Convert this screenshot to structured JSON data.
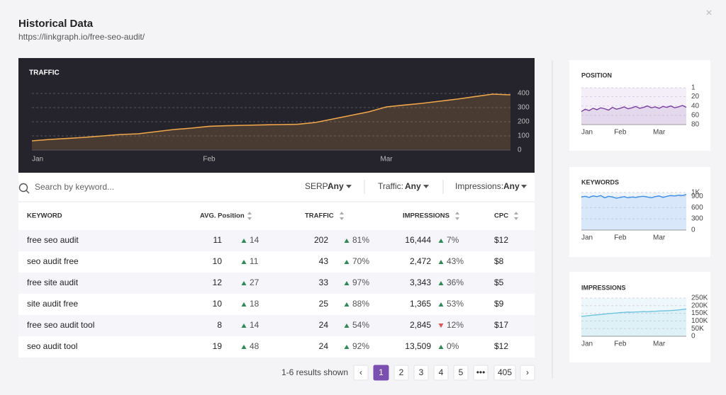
{
  "header": {
    "title": "Historical Data",
    "url": "https://linkgraph.io/free-seo-audit/",
    "close": "×"
  },
  "traffic_chart": {
    "type": "area",
    "title": "TRAFFIC",
    "color": "#f0a64a",
    "categories": [
      "Jan",
      null,
      null,
      null,
      null,
      null,
      null,
      null,
      null,
      null,
      "Feb",
      null,
      null,
      null,
      null,
      null,
      null,
      null,
      null,
      null,
      "Mar",
      null,
      null,
      null,
      null,
      null,
      null,
      null
    ],
    "values": [
      65,
      75,
      82,
      90,
      100,
      110,
      115,
      130,
      145,
      155,
      168,
      172,
      175,
      178,
      180,
      182,
      195,
      220,
      245,
      270,
      305,
      318,
      330,
      345,
      360,
      378,
      395,
      390
    ],
    "ylim": [
      0,
      400
    ],
    "yticks": [
      0,
      100,
      200,
      300,
      400
    ],
    "grid": true
  },
  "side_charts": [
    {
      "type": "area",
      "title": "POSITION",
      "color": "#7a3fa0",
      "inverted": true,
      "categories": [
        "Jan",
        null,
        null,
        null,
        null,
        null,
        null,
        null,
        null,
        null,
        "Feb",
        null,
        null,
        null,
        null,
        null,
        null,
        null,
        null,
        null,
        "Mar",
        null,
        null,
        null,
        null,
        null,
        null,
        null
      ],
      "values": [
        52,
        47,
        50,
        45,
        48,
        44,
        46,
        49,
        43,
        47,
        45,
        42,
        46,
        44,
        41,
        45,
        43,
        40,
        44,
        42,
        45,
        41,
        43,
        40,
        44,
        42,
        39,
        43
      ],
      "ylim": [
        1,
        80
      ],
      "yticks": [
        1,
        20,
        40,
        60,
        80
      ],
      "grid": true
    },
    {
      "type": "area",
      "title": "KEYWORDS",
      "color": "#3a8ee6",
      "categories": [
        "Jan",
        null,
        null,
        null,
        null,
        null,
        null,
        null,
        null,
        null,
        "Feb",
        null,
        null,
        null,
        null,
        null,
        null,
        null,
        null,
        null,
        "Mar",
        null,
        null,
        null,
        null,
        null,
        null,
        null
      ],
      "values": [
        880,
        900,
        870,
        910,
        890,
        920,
        860,
        900,
        880,
        850,
        870,
        890,
        860,
        880,
        870,
        890,
        900,
        880,
        860,
        890,
        910,
        870,
        900,
        920,
        910,
        930,
        920,
        950
      ],
      "ylim": [
        0,
        1000
      ],
      "yticks": [
        0,
        300,
        600,
        900,
        {
          "value": 1000,
          "label": "1K"
        }
      ],
      "grid": true
    },
    {
      "type": "area",
      "title": "IMPRESSIONS",
      "color": "#6cc4e0",
      "categories": [
        "Jan",
        null,
        null,
        null,
        null,
        null,
        null,
        null,
        null,
        null,
        "Feb",
        null,
        null,
        null,
        null,
        null,
        null,
        null,
        null,
        null,
        "Mar",
        null,
        null,
        null,
        null,
        null,
        null,
        null
      ],
      "values": [
        130000,
        132000,
        135000,
        138000,
        140000,
        142000,
        145000,
        148000,
        150000,
        152000,
        155000,
        156000,
        158000,
        157000,
        159000,
        160000,
        161000,
        160000,
        162000,
        163000,
        165000,
        166000,
        167000,
        168000,
        170000,
        172000,
        175000,
        178000
      ],
      "ylim": [
        0,
        250000
      ],
      "yticks": [
        0,
        {
          "value": 50000,
          "label": "50K"
        },
        {
          "value": 100000,
          "label": "100K"
        },
        {
          "value": 150000,
          "label": "150K"
        },
        {
          "value": 200000,
          "label": "200K"
        },
        {
          "value": 250000,
          "label": "250K"
        }
      ],
      "grid": true
    }
  ],
  "filters": {
    "search_placeholder": "Search by keyword...",
    "items": [
      {
        "label": "SERP:",
        "value": "Any"
      },
      {
        "label": "Traffic:",
        "value": "Any"
      },
      {
        "label": "Impressions:",
        "value": "Any"
      }
    ]
  },
  "table": {
    "headers": [
      "KEYWORD",
      "AVG. Position",
      "TRAFFIC",
      "IMPRESSIONS",
      "CPC"
    ],
    "rows": [
      {
        "keyword": "free seo audit",
        "position": "11",
        "position_change": {
          "label": "14",
          "trend": "up"
        },
        "traffic": "202",
        "traffic_change": {
          "label": "81%",
          "trend": "up"
        },
        "impressions": "16,444",
        "impressions_change": {
          "label": "7%",
          "trend": "up"
        },
        "cpc": "$12"
      },
      {
        "keyword": "seo audit free",
        "position": "10",
        "position_change": {
          "label": "11",
          "trend": "up"
        },
        "traffic": "43",
        "traffic_change": {
          "label": "70%",
          "trend": "up"
        },
        "impressions": "2,472",
        "impressions_change": {
          "label": "43%",
          "trend": "up"
        },
        "cpc": "$8"
      },
      {
        "keyword": "free site audit",
        "position": "12",
        "position_change": {
          "label": "27",
          "trend": "up"
        },
        "traffic": "33",
        "traffic_change": {
          "label": "97%",
          "trend": "up"
        },
        "impressions": "3,343",
        "impressions_change": {
          "label": "36%",
          "trend": "up"
        },
        "cpc": "$5"
      },
      {
        "keyword": "site audit free",
        "position": "10",
        "position_change": {
          "label": "18",
          "trend": "up"
        },
        "traffic": "25",
        "traffic_change": {
          "label": "88%",
          "trend": "up"
        },
        "impressions": "1,365",
        "impressions_change": {
          "label": "53%",
          "trend": "up"
        },
        "cpc": "$9"
      },
      {
        "keyword": "free seo audit tool",
        "position": "8",
        "position_change": {
          "label": "14",
          "trend": "up"
        },
        "traffic": "24",
        "traffic_change": {
          "label": "54%",
          "trend": "up"
        },
        "impressions": "2,845",
        "impressions_change": {
          "label": "12%",
          "trend": "down"
        },
        "cpc": "$17"
      },
      {
        "keyword": "seo audit tool",
        "position": "19",
        "position_change": {
          "label": "48",
          "trend": "up"
        },
        "traffic": "24",
        "traffic_change": {
          "label": "92%",
          "trend": "up"
        },
        "impressions": "13,509",
        "impressions_change": {
          "label": "0%",
          "trend": "up"
        },
        "cpc": "$12"
      }
    ]
  },
  "pagination": {
    "summary": "1-6 results shown",
    "prev": "‹",
    "next": "›",
    "pages": [
      "1",
      "2",
      "3",
      "4",
      "5",
      "•••",
      "405"
    ],
    "active": 0
  }
}
